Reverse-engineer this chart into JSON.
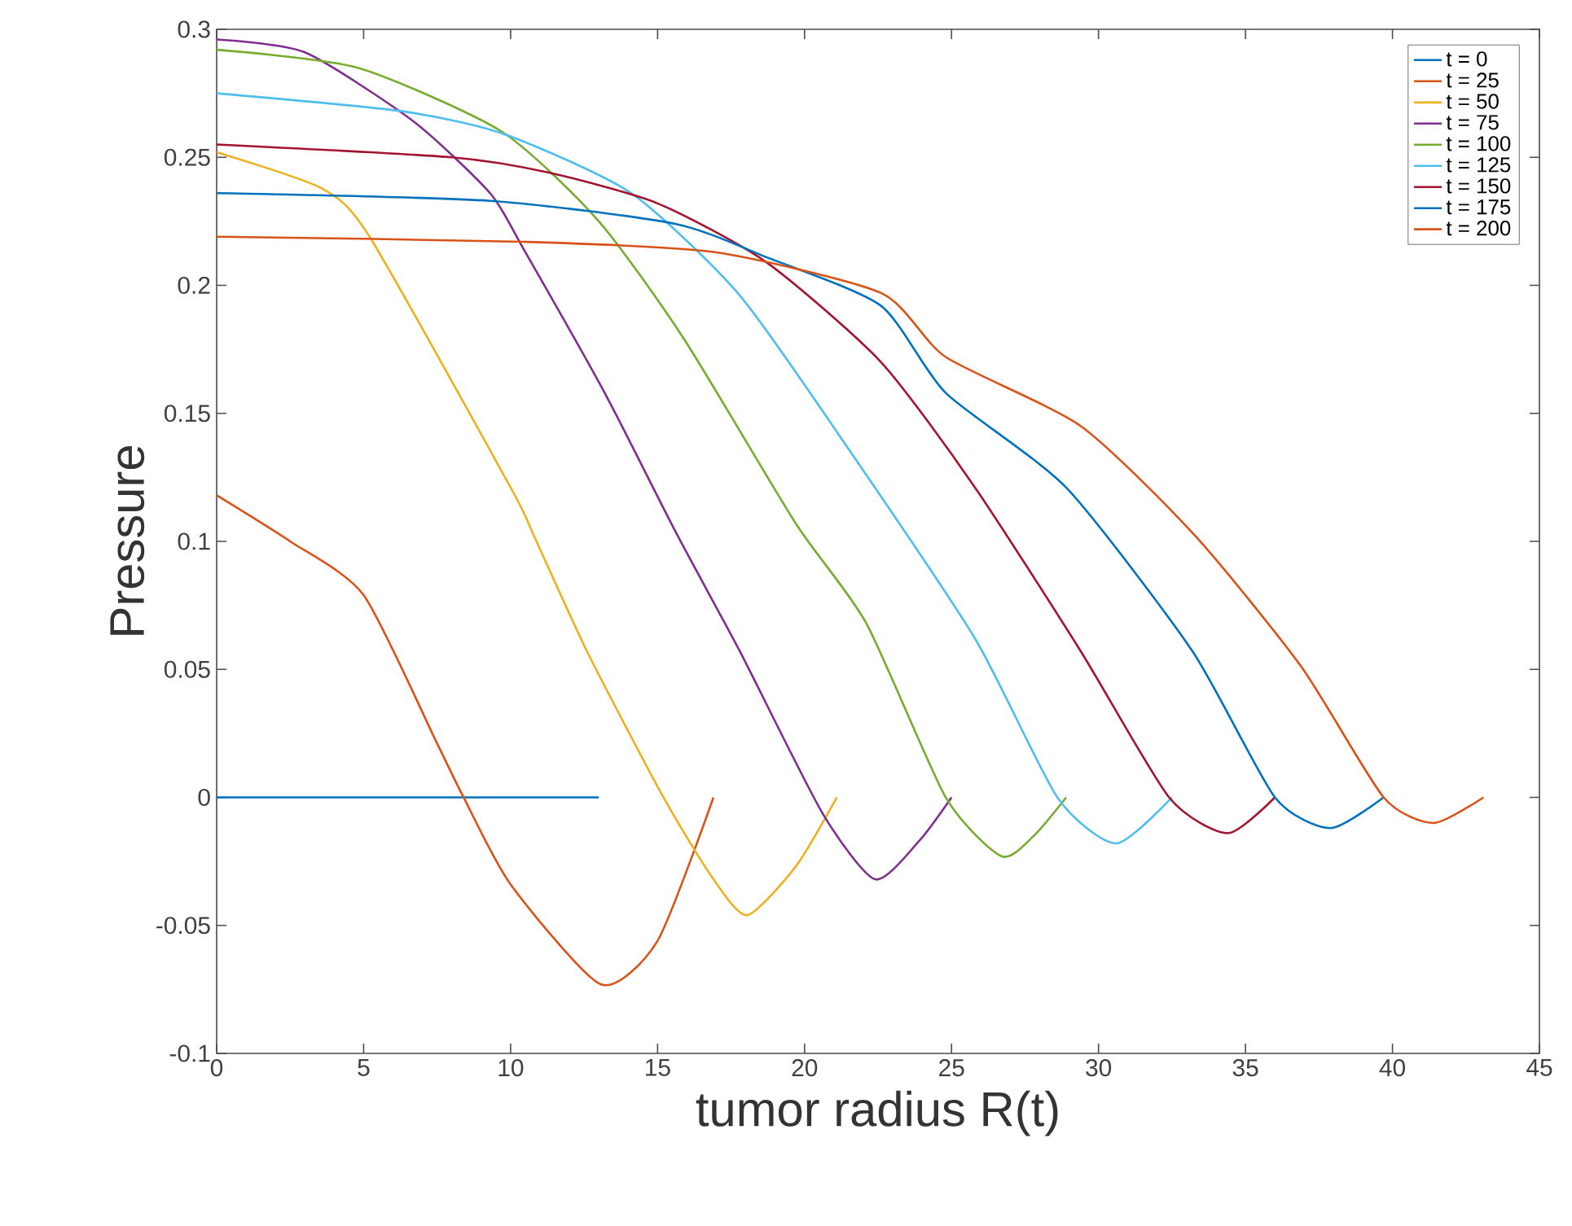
{
  "chart_data": {
    "type": "line",
    "xlabel": "tumor radius R(t)",
    "ylabel": "Pressure",
    "xlim": [
      0,
      45
    ],
    "ylim": [
      -0.1,
      0.3
    ],
    "xticks": [
      0,
      5,
      10,
      15,
      20,
      25,
      30,
      35,
      40,
      45
    ],
    "yticks": [
      -0.1,
      -0.05,
      0,
      0.05,
      0.1,
      0.15,
      0.2,
      0.25,
      0.3
    ],
    "legend": "top right",
    "series": [
      {
        "name": "t = 0",
        "color": "#0072bd",
        "x": [
          0,
          13.0
        ],
        "values": [
          0,
          0
        ]
      },
      {
        "name": "t = 25",
        "color": "#d95319",
        "x": [
          0,
          2.5,
          5,
          7.5,
          8.4,
          10,
          13.06,
          15,
          16.9
        ],
        "values": [
          0.118,
          0.1,
          0.079,
          0.021,
          0,
          -0.034,
          -0.073,
          -0.056,
          0
        ]
      },
      {
        "name": "t = 50",
        "color": "#edb120",
        "x": [
          0,
          3.55,
          5.2,
          10,
          10.8,
          12.6,
          15.2,
          16.9,
          18.05,
          19.7,
          21.1
        ],
        "values": [
          0.252,
          0.238,
          0.219,
          0.121,
          0.102,
          0.057,
          0,
          -0.032,
          -0.046,
          -0.027,
          0
        ]
      },
      {
        "name": "t = 75",
        "color": "#7e2f8e",
        "x": [
          0,
          3.0,
          6.7,
          9.3,
          10.4,
          13.2,
          15.6,
          17.8,
          20.6,
          22.4,
          23.9,
          25.0
        ],
        "values": [
          0.296,
          0.291,
          0.264,
          0.236,
          0.215,
          0.158,
          0.104,
          0.057,
          -0.006,
          -0.032,
          -0.017,
          0
        ]
      },
      {
        "name": "t = 100",
        "color": "#77ac30",
        "x": [
          0,
          4.8,
          9.7,
          13.0,
          15.9,
          19.7,
          22.1,
          24.8,
          26.7,
          27.8,
          28.9
        ],
        "values": [
          0.292,
          0.285,
          0.26,
          0.225,
          0.179,
          0.107,
          0.068,
          0,
          -0.023,
          -0.015,
          0
        ]
      },
      {
        "name": "t = 125",
        "color": "#4dbeee",
        "x": [
          0,
          6.3,
          9.8,
          14.1,
          17.8,
          21.5,
          25.8,
          28.6,
          30.6,
          32.5
        ],
        "values": [
          0.275,
          0.268,
          0.259,
          0.236,
          0.196,
          0.136,
          0.062,
          0,
          -0.018,
          0
        ]
      },
      {
        "name": "t = 150",
        "color": "#a2142f",
        "x": [
          0,
          8.0,
          11.3,
          15.0,
          18.7,
          22.6,
          25.8,
          29.4,
          32.4,
          34.4,
          36.0
        ],
        "values": [
          0.255,
          0.25,
          0.244,
          0.232,
          0.209,
          0.17,
          0.121,
          0.057,
          0,
          -0.014,
          0
        ]
      },
      {
        "name": "t = 175",
        "color": "#0072bd",
        "x": [
          0,
          9.3,
          15.6,
          18.7,
          22.6,
          24.8,
          28.9,
          33.2,
          36.0,
          37.9,
          39.7
        ],
        "values": [
          0.236,
          0.233,
          0.224,
          0.211,
          0.192,
          0.158,
          0.121,
          0.057,
          0,
          -0.012,
          0
        ]
      },
      {
        "name": "t = 200",
        "color": "#d95319",
        "x": [
          0,
          10.4,
          16.9,
          22.6,
          24.8,
          29.4,
          33.3,
          36.9,
          39.7,
          41.4,
          43.1
        ],
        "values": [
          0.219,
          0.217,
          0.213,
          0.197,
          0.172,
          0.145,
          0.102,
          0.051,
          0,
          -0.01,
          0
        ]
      }
    ]
  }
}
